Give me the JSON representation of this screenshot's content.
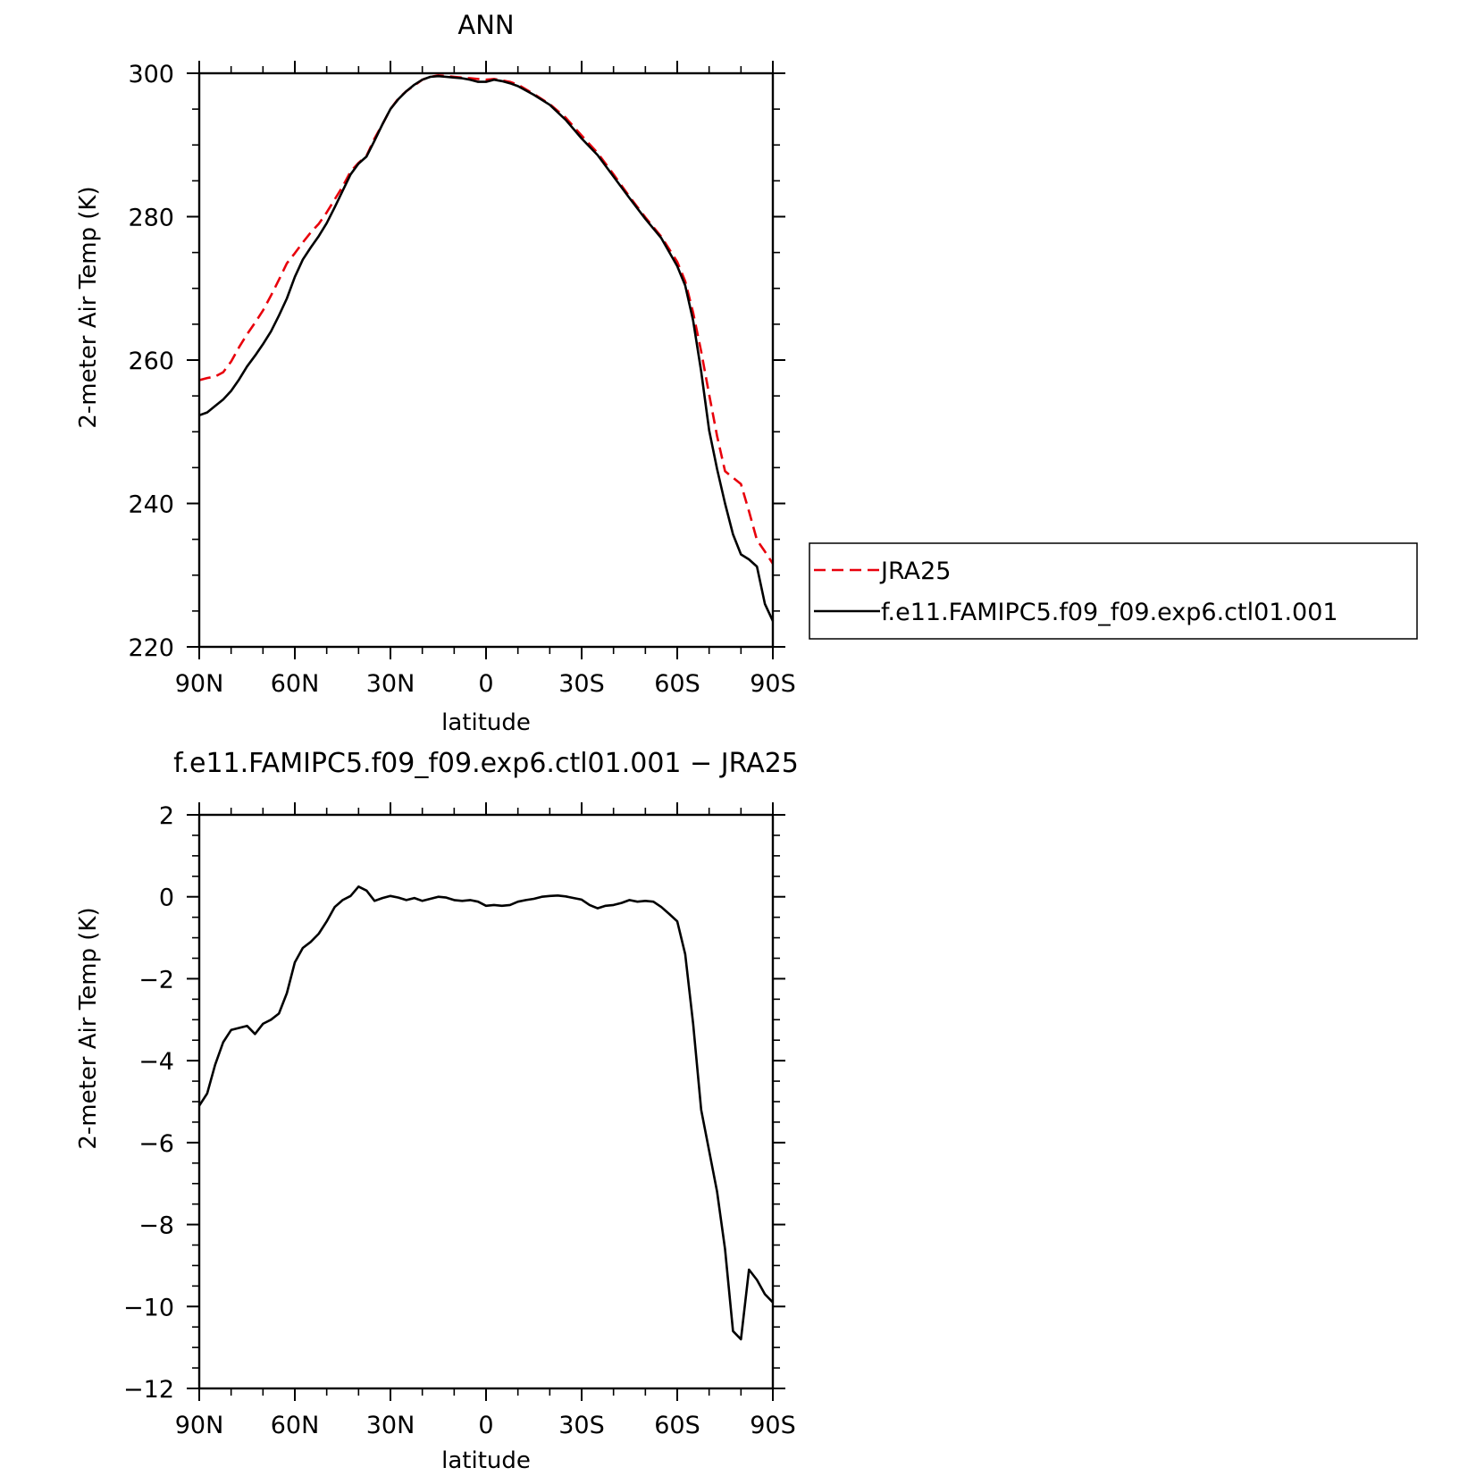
{
  "chart_data": [
    {
      "type": "line",
      "title": "ANN",
      "xlabel": "latitude",
      "ylabel": "2-meter Air Temp (K)",
      "xlim": [
        90,
        -90
      ],
      "ylim": [
        220,
        300
      ],
      "x_ticks": [
        90,
        60,
        30,
        0,
        -30,
        -60,
        -90
      ],
      "x_tick_labels": [
        "90N",
        "60N",
        "30N",
        "0",
        "30S",
        "60S",
        "90S"
      ],
      "y_ticks": [
        220,
        240,
        260,
        280,
        300
      ],
      "y_tick_labels": [
        "220",
        "240",
        "260",
        "280",
        "300"
      ],
      "legend_position": "right",
      "series": [
        {
          "name": "JRA25",
          "color": "#e8000b",
          "style": "dashed",
          "x": [
            90,
            87.5,
            85,
            82.5,
            80,
            77.5,
            75,
            72.5,
            70,
            67.5,
            65,
            62.5,
            60,
            57.5,
            55,
            52.5,
            50,
            47.5,
            45,
            42.5,
            40,
            37.5,
            35,
            32.5,
            30,
            27.5,
            25,
            22.5,
            20,
            17.5,
            15,
            12.5,
            10,
            7.5,
            5,
            2.5,
            0,
            -2.5,
            -5,
            -7.5,
            -10,
            -15,
            -20,
            -25,
            -30,
            -35,
            -40,
            -45,
            -50,
            -55,
            -60,
            -62.5,
            -65,
            -67.5,
            -70,
            -72.5,
            -75,
            -77.5,
            -80,
            -82.5,
            -85,
            -87.5,
            -90
          ],
          "y": [
            257.2,
            257.5,
            257.7,
            258.3,
            259.8,
            261.8,
            263.6,
            265.2,
            266.9,
            269.0,
            271.2,
            273.5,
            274.9,
            276.4,
            277.8,
            279.0,
            280.6,
            282.4,
            284.2,
            286.3,
            287.5,
            288.5,
            290.9,
            292.9,
            295.0,
            296.5,
            297.5,
            298.3,
            299.1,
            299.5,
            299.7,
            299.6,
            299.5,
            299.4,
            299.3,
            299.2,
            299.1,
            299.2,
            299.0,
            298.8,
            298.4,
            297.1,
            295.7,
            293.8,
            291.3,
            288.9,
            285.9,
            282.8,
            279.9,
            277.2,
            273.7,
            271.0,
            266.6,
            261.2,
            255.2,
            249.4,
            244.5,
            243.6,
            242.7,
            238.9,
            234.9,
            233.3,
            231.6
          ]
        },
        {
          "name": "f.e11.FAMIPC5.f09_f09.exp6.ctl01.001",
          "color": "#000000",
          "style": "solid",
          "x": [
            90,
            87.5,
            85,
            82.5,
            80,
            77.5,
            75,
            72.5,
            70,
            67.5,
            65,
            62.5,
            60,
            57.5,
            55,
            52.5,
            50,
            47.5,
            45,
            42.5,
            40,
            37.5,
            35,
            32.5,
            30,
            27.5,
            25,
            22.5,
            20,
            17.5,
            15,
            12.5,
            10,
            7.5,
            5,
            2.5,
            0,
            -2.5,
            -5,
            -7.5,
            -10,
            -15,
            -20,
            -25,
            -30,
            -35,
            -40,
            -45,
            -50,
            -55,
            -60,
            -62.5,
            -65,
            -67.5,
            -70,
            -72.5,
            -75,
            -77.5,
            -80,
            -82.5,
            -85,
            -87.5,
            -90
          ],
          "y": [
            252.3,
            252.7,
            253.6,
            254.5,
            255.7,
            257.3,
            259.1,
            260.6,
            262.2,
            264.0,
            266.2,
            268.6,
            271.6,
            274.0,
            275.7,
            277.3,
            279.1,
            281.3,
            283.6,
            285.9,
            287.4,
            288.4,
            290.6,
            292.9,
            295.0,
            296.4,
            297.5,
            298.4,
            299.1,
            299.5,
            299.6,
            299.5,
            299.4,
            299.3,
            299.1,
            298.8,
            298.8,
            299.1,
            298.9,
            298.6,
            298.2,
            297.0,
            295.6,
            293.5,
            290.9,
            288.6,
            285.6,
            282.6,
            279.7,
            277.0,
            273.1,
            270.4,
            265.5,
            258.4,
            250.2,
            244.8,
            240.0,
            235.7,
            232.9,
            232.2,
            231.2,
            226.0,
            223.6
          ]
        }
      ]
    },
    {
      "type": "line",
      "title": "f.e11.FAMIPC5.f09_f09.exp6.ctl01.001 − JRA25",
      "xlabel": "latitude",
      "ylabel": "2-meter Air Temp (K)",
      "xlim": [
        90,
        -90
      ],
      "ylim": [
        -12,
        2
      ],
      "x_ticks": [
        90,
        60,
        30,
        0,
        -30,
        -60,
        -90
      ],
      "x_tick_labels": [
        "90N",
        "60N",
        "30N",
        "0",
        "30S",
        "60S",
        "90S"
      ],
      "y_ticks": [
        2,
        0,
        -2,
        -4,
        -6,
        -8,
        -10,
        -12
      ],
      "y_tick_labels": [
        "2",
        "0",
        "−2",
        "−4",
        "−6",
        "−8",
        "−10",
        "−12"
      ],
      "series": [
        {
          "color": "#000000",
          "style": "solid",
          "x": [
            90,
            87.5,
            85,
            82.5,
            80,
            77.5,
            75,
            72.5,
            70,
            67.5,
            65,
            62.5,
            60,
            57.5,
            55,
            52.5,
            50,
            47.5,
            45,
            42.5,
            40,
            37.5,
            35,
            32.5,
            30,
            27.5,
            25,
            22.5,
            20,
            17.5,
            15,
            12.5,
            10,
            7.5,
            5,
            2.5,
            0,
            -2.5,
            -5,
            -7.5,
            -10,
            -12.5,
            -15,
            -17.5,
            -20,
            -22.5,
            -25,
            -27.5,
            -30,
            -32.5,
            -35,
            -37.5,
            -40,
            -42.5,
            -45,
            -47.5,
            -50,
            -52.5,
            -55,
            -57.5,
            -60,
            -62.5,
            -65,
            -67.5,
            -70,
            -72.5,
            -75,
            -77.5,
            -80,
            -82.5,
            -85,
            -87.5,
            -90
          ],
          "y": [
            -5.1,
            -4.8,
            -4.1,
            -3.55,
            -3.25,
            -3.2,
            -3.15,
            -3.35,
            -3.1,
            -3.0,
            -2.85,
            -2.35,
            -1.6,
            -1.25,
            -1.1,
            -0.9,
            -0.6,
            -0.25,
            -0.08,
            0.02,
            0.25,
            0.15,
            -0.1,
            -0.03,
            0.02,
            -0.02,
            -0.08,
            -0.03,
            -0.1,
            -0.05,
            0.0,
            -0.02,
            -0.08,
            -0.1,
            -0.08,
            -0.12,
            -0.22,
            -0.2,
            -0.22,
            -0.2,
            -0.12,
            -0.08,
            -0.05,
            0.0,
            0.02,
            0.03,
            0.01,
            -0.03,
            -0.07,
            -0.2,
            -0.28,
            -0.22,
            -0.2,
            -0.15,
            -0.08,
            -0.12,
            -0.1,
            -0.12,
            -0.25,
            -0.42,
            -0.6,
            -1.4,
            -3.1,
            -5.2,
            -6.2,
            -7.2,
            -8.6,
            -10.6,
            -10.8,
            -9.1,
            -9.35,
            -9.7,
            -9.9
          ]
        }
      ]
    }
  ]
}
